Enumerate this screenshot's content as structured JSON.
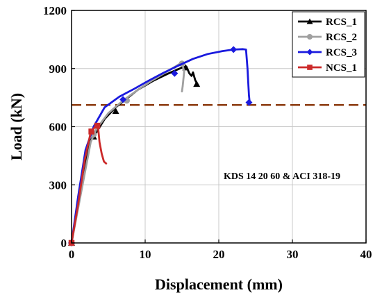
{
  "chart_data": {
    "type": "line",
    "xlabel": "Displacement (mm)",
    "ylabel": "Load (kN)",
    "xlim": [
      0,
      40
    ],
    "ylim": [
      0,
      1200
    ],
    "x_ticks": [
      0,
      10,
      20,
      30,
      40
    ],
    "y_ticks": [
      0,
      300,
      600,
      900,
      1200
    ],
    "x_tick_labels": [
      "0",
      "10",
      "20",
      "30",
      "40"
    ],
    "y_tick_labels": [
      "0",
      "300",
      "600",
      "900",
      "1200"
    ],
    "grid": true,
    "legend_position": "top-right",
    "annotation": "KDS 14 20 60 & ACI 318-19",
    "reference_line": {
      "y": 712,
      "style": "dashed",
      "color": "#8B3A0F"
    },
    "series": [
      {
        "name": "RCS_1",
        "color": "#000000",
        "marker": "triangle",
        "x": [
          0,
          1.2,
          2.4,
          3.0,
          4.5,
          6.0,
          7.5,
          9.0,
          11.0,
          13.0,
          15.0,
          15.6,
          16.0,
          16.3,
          16.5,
          16.8,
          17.1
        ],
        "y": [
          0,
          260,
          520,
          548,
          640,
          700,
          745,
          790,
          835,
          872,
          905,
          910,
          875,
          862,
          880,
          840,
          818
        ],
        "markers_x": [
          0,
          3.0,
          6.0,
          15.5,
          17.0
        ],
        "markers_y": [
          0,
          548,
          680,
          905,
          820
        ]
      },
      {
        "name": "RCS_2",
        "color": "#A0A0A0",
        "marker": "circle",
        "x": [
          0,
          1.3,
          2.6,
          3.4,
          5.0,
          7.0,
          9.0,
          11.0,
          13.0,
          14.5,
          15.0,
          15.3,
          15.1,
          15.0
        ],
        "y": [
          0,
          260,
          520,
          590,
          670,
          735,
          790,
          840,
          885,
          920,
          930,
          885,
          810,
          782
        ],
        "markers_x": [
          0,
          3.0,
          7.5,
          15.0
        ],
        "markers_y": [
          0,
          560,
          735,
          925
        ]
      },
      {
        "name": "RCS_3",
        "color": "#1A1ADE",
        "marker": "diamond",
        "x": [
          0,
          0.9,
          1.9,
          3.0,
          4.5,
          6.5,
          8.5,
          10.5,
          12.5,
          14.5,
          16.5,
          18.5,
          20.5,
          22.0,
          23.3,
          23.7,
          23.9,
          24.1,
          24.2
        ],
        "y": [
          0,
          240,
          480,
          600,
          700,
          755,
          795,
          838,
          878,
          915,
          950,
          975,
          990,
          998,
          1000,
          998,
          900,
          760,
          725
        ],
        "markers_x": [
          0,
          7.0,
          14.0,
          22.0,
          24.1
        ],
        "markers_y": [
          0,
          740,
          875,
          998,
          725
        ]
      },
      {
        "name": "NCS_1",
        "color": "#CC2A2A",
        "marker": "square",
        "x": [
          0,
          0.9,
          1.8,
          2.6,
          3.1,
          3.4,
          3.6,
          3.8,
          4.1,
          4.4,
          4.7
        ],
        "y": [
          0,
          200,
          430,
          570,
          595,
          610,
          600,
          520,
          460,
          420,
          410
        ],
        "markers_x": [
          0,
          2.7,
          3.5
        ],
        "markers_y": [
          0,
          575,
          605
        ]
      }
    ]
  }
}
